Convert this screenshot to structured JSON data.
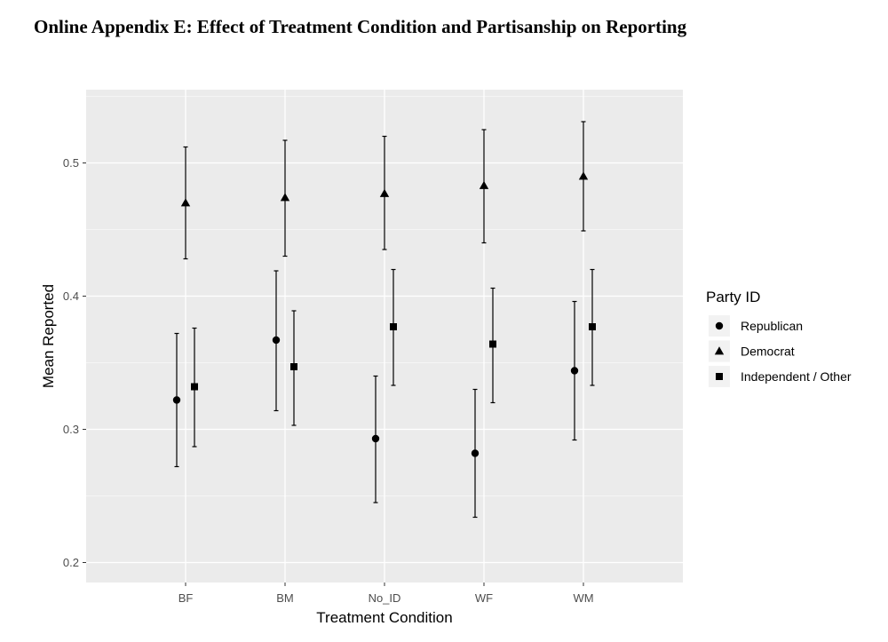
{
  "page": {
    "title": "Online Appendix E: Effect of Treatment Condition and Partisanship on Reporting"
  },
  "colors": {
    "panel_bg": "#ebebeb",
    "grid": "#ffffff",
    "marks": "#000000"
  },
  "chart_data": {
    "type": "scatter",
    "subtype": "point-with-errorbars",
    "title": "",
    "xlabel": "Treatment Condition",
    "ylabel": "Mean Reported",
    "categories": [
      "BF",
      "BM",
      "No_ID",
      "WF",
      "WM"
    ],
    "ylim": [
      0.185,
      0.555
    ],
    "yticks": [
      0.2,
      0.3,
      0.4,
      0.5
    ],
    "ytick_labels": [
      "0.2",
      "0.3",
      "0.4",
      "0.5"
    ],
    "grid": true,
    "legend": {
      "title": "Party ID",
      "position": "right"
    },
    "series": [
      {
        "name": "Republican",
        "shape": "circle",
        "values": [
          0.322,
          0.367,
          0.293,
          0.282,
          0.344
        ],
        "lower": [
          0.272,
          0.314,
          0.245,
          0.234,
          0.292
        ],
        "upper": [
          0.372,
          0.419,
          0.34,
          0.33,
          0.396
        ]
      },
      {
        "name": "Democrat",
        "shape": "triangle",
        "values": [
          0.47,
          0.474,
          0.477,
          0.483,
          0.49
        ],
        "lower": [
          0.428,
          0.43,
          0.435,
          0.44,
          0.449
        ],
        "upper": [
          0.512,
          0.517,
          0.52,
          0.525,
          0.531
        ]
      },
      {
        "name": "Independent / Other",
        "shape": "square",
        "values": [
          0.332,
          0.347,
          0.377,
          0.364,
          0.377
        ],
        "lower": [
          0.287,
          0.303,
          0.333,
          0.32,
          0.333
        ],
        "upper": [
          0.376,
          0.389,
          0.42,
          0.406,
          0.42
        ]
      }
    ]
  }
}
